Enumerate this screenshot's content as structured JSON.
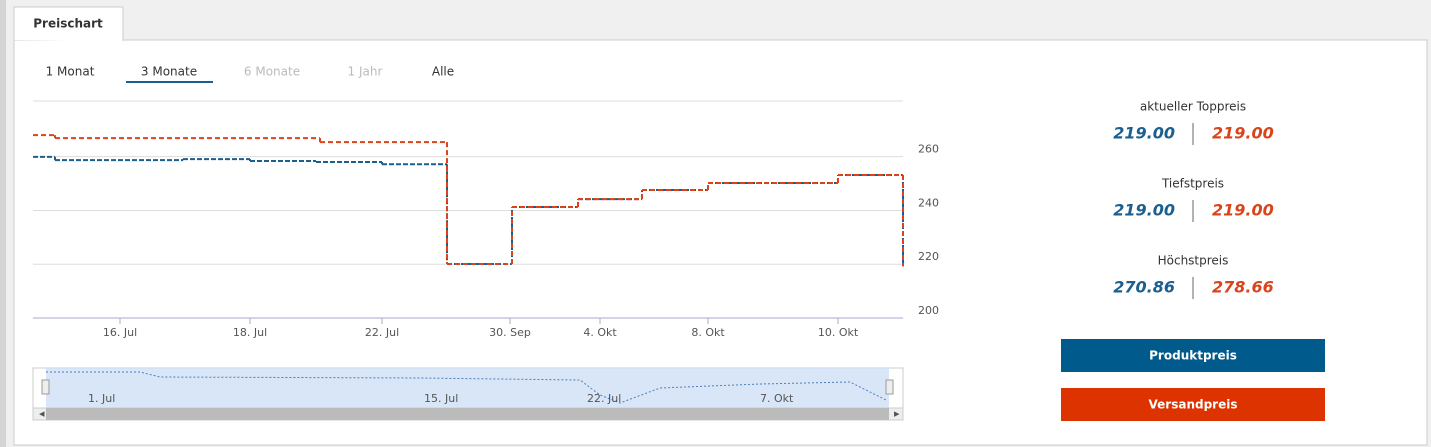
{
  "tab": "Preischart",
  "ranges": [
    "1 Monat",
    "3 Monate",
    "6 Monate",
    "1 Jahr",
    "Alle"
  ],
  "chart_data": {
    "type": "step-line",
    "series": [
      {
        "name": "Produktpreis",
        "color": "#1a5f8e",
        "x": [
          0,
          2.2,
          15,
          21.7,
          28.3,
          34.9,
          41.4,
          47.9,
          54.5,
          60.9,
          67.5,
          80.5,
          87
        ],
        "values": [
          259.9,
          258.7,
          259.1,
          258.4,
          258.0,
          257.2,
          220.1,
          241.3,
          244.2,
          247.6,
          250.2,
          253.2,
          219.3
        ]
      },
      {
        "name": "Versandpreis",
        "color": "#d9441a",
        "x": [
          0,
          2.2,
          28.7,
          41.4,
          47.9,
          54.5,
          60.9,
          67.5,
          80.5,
          87
        ],
        "values": [
          268.0,
          266.9,
          265.4,
          220.1,
          241.3,
          244.2,
          247.6,
          250.2,
          253.2,
          219.3
        ]
      }
    ],
    "xlim": [
      0,
      87
    ],
    "xticks": [
      {
        "value": 8.7,
        "label": "16. Jul"
      },
      {
        "value": 21.7,
        "label": "18. Jul"
      },
      {
        "value": 34.9,
        "label": "22. Jul"
      },
      {
        "value": 47.7,
        "label": "30. Sep"
      },
      {
        "value": 56.7,
        "label": "4. Okt"
      },
      {
        "value": 67.5,
        "label": "8. Okt"
      },
      {
        "value": 80.5,
        "label": "10. Okt"
      }
    ],
    "ylim": [
      200,
      280.7
    ],
    "yticks": [
      200,
      220,
      240,
      260
    ],
    "grid": true
  },
  "navigator": {
    "labels": [
      "1. Jul",
      "15. Jul",
      "22. Jul",
      "7. Okt"
    ]
  },
  "stats": [
    {
      "label": "aktueller Toppreis",
      "product": "219.00",
      "shipping": "219.00"
    },
    {
      "label": "Tiefstpreis",
      "product": "219.00",
      "shipping": "219.00"
    },
    {
      "label": "Höchstpreis",
      "product": "270.86",
      "shipping": "278.66"
    }
  ]
}
